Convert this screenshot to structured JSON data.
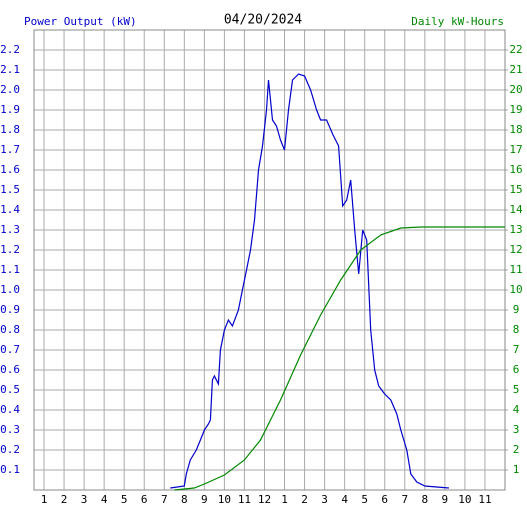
{
  "chart_data": {
    "type": "line",
    "title": "04/20/2024",
    "y_label": "Power Output (kW)",
    "y2_label": "Daily kW-Hours",
    "grid": true,
    "xlim": [
      0.5,
      24
    ],
    "xticks": [
      1,
      2,
      3,
      4,
      5,
      6,
      7,
      8,
      9,
      10,
      11,
      12,
      {
        "value": 13,
        "label": "1"
      },
      {
        "value": 14,
        "label": "2"
      },
      {
        "value": 15,
        "label": "3"
      },
      {
        "value": 16,
        "label": "4"
      },
      {
        "value": 17,
        "label": "5"
      },
      {
        "value": 18,
        "label": "6"
      },
      {
        "value": 19,
        "label": "7"
      },
      {
        "value": 20,
        "label": "8"
      },
      {
        "value": 21,
        "label": "9"
      },
      {
        "value": 22,
        "label": "10"
      },
      {
        "value": 23,
        "label": "11"
      }
    ],
    "ylim": [
      0,
      2.3
    ],
    "yticks": [
      0.1,
      0.2,
      0.3,
      0.4,
      0.5,
      0.6,
      0.7,
      0.8,
      0.9,
      {
        "value": 1,
        "label": "1.0"
      },
      1.1,
      1.2,
      1.3,
      1.4,
      1.5,
      1.6,
      1.7,
      1.8,
      1.9,
      {
        "value": 2,
        "label": "2.0"
      },
      2.1,
      2.2
    ],
    "y2lim": [
      0,
      23
    ],
    "y2ticks": [
      1,
      2,
      3,
      4,
      5,
      6,
      7,
      8,
      9,
      10,
      11,
      12,
      13,
      14,
      15,
      16,
      17,
      18,
      19,
      20,
      21,
      22
    ],
    "series": [
      {
        "name": "Power Output (kW)",
        "color": "#0000cc",
        "x": [
          7.3,
          8.0,
          8.1,
          8.3,
          8.6,
          8.8,
          9.0,
          9.2,
          9.3,
          9.4,
          9.5,
          9.7,
          9.8,
          10.0,
          10.2,
          10.4,
          10.7,
          10.9,
          11.1,
          11.3,
          11.5,
          11.7,
          11.9,
          12.1,
          12.2,
          12.4,
          12.6,
          12.8,
          13.0,
          13.2,
          13.4,
          13.7,
          14.0,
          14.3,
          14.6,
          14.8,
          15.1,
          15.4,
          15.7,
          15.9,
          16.1,
          16.3,
          16.5,
          16.7,
          16.9,
          17.1,
          17.3,
          17.5,
          17.7,
          18.0,
          18.3,
          18.6,
          18.8,
          19.1,
          19.3,
          19.6,
          20.0,
          21.2
        ],
        "values": [
          0.01,
          0.02,
          0.08,
          0.15,
          0.2,
          0.25,
          0.3,
          0.33,
          0.35,
          0.55,
          0.57,
          0.53,
          0.7,
          0.8,
          0.85,
          0.82,
          0.9,
          1.0,
          1.1,
          1.2,
          1.35,
          1.6,
          1.72,
          1.9,
          2.05,
          1.85,
          1.82,
          1.75,
          1.7,
          1.9,
          2.05,
          2.08,
          2.07,
          2.0,
          1.9,
          1.85,
          1.85,
          1.78,
          1.72,
          1.42,
          1.45,
          1.55,
          1.3,
          1.08,
          1.3,
          1.25,
          0.8,
          0.6,
          0.52,
          0.48,
          0.45,
          0.38,
          0.3,
          0.2,
          0.08,
          0.04,
          0.02,
          0.01
        ]
      },
      {
        "name": "Daily kW-Hours",
        "color": "#008800",
        "axis": "y2",
        "x": [
          7.5,
          8.5,
          9.0,
          10.0,
          11.0,
          11.8,
          12.8,
          13.8,
          14.8,
          15.8,
          16.8,
          17.8,
          18.8,
          19.8,
          24
        ],
        "values": [
          0,
          0.1,
          0.3,
          0.75,
          1.5,
          2.5,
          4.5,
          6.75,
          8.75,
          10.5,
          12.0,
          12.75,
          13.1,
          13.15,
          13.15
        ]
      }
    ]
  }
}
